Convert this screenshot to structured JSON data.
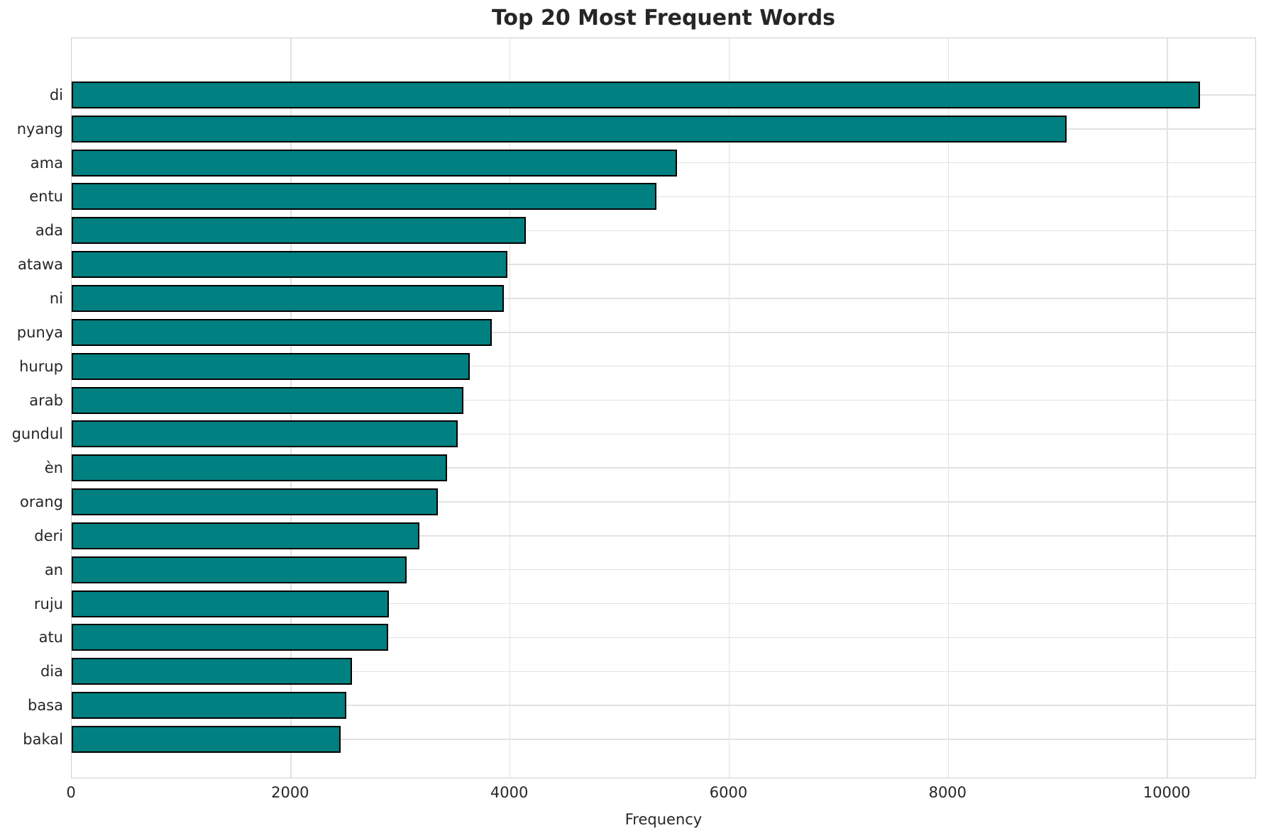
{
  "title": "Top 20 Most Frequent Words",
  "chart_data": {
    "type": "bar",
    "orientation": "horizontal",
    "title": "Top 20 Most Frequent Words",
    "categories": [
      "di",
      "nyang",
      "ama",
      "entu",
      "ada",
      "atawa",
      "ni",
      "punya",
      "hurup",
      "arab",
      "gundul",
      "èn",
      "orang",
      "deri",
      "an",
      "ruju",
      "atu",
      "dia",
      "basa",
      "bakal"
    ],
    "values": [
      10310,
      9090,
      5530,
      5340,
      4150,
      3980,
      3950,
      3840,
      3640,
      3580,
      3530,
      3430,
      3345,
      3180,
      3060,
      2900,
      2890,
      2560,
      2510,
      2460
    ],
    "xlabel": "Frequency",
    "ylabel": "",
    "xticks": [
      0,
      2000,
      4000,
      6000,
      8000,
      10000
    ],
    "xlim": [
      0,
      10815
    ],
    "grid": true,
    "legend": false,
    "bar_color": "#008080",
    "bar_edge_color": "#000000",
    "grid_color": "#e2e2e2",
    "spine_color": "#cfcfcf",
    "text_color": "#262626"
  }
}
